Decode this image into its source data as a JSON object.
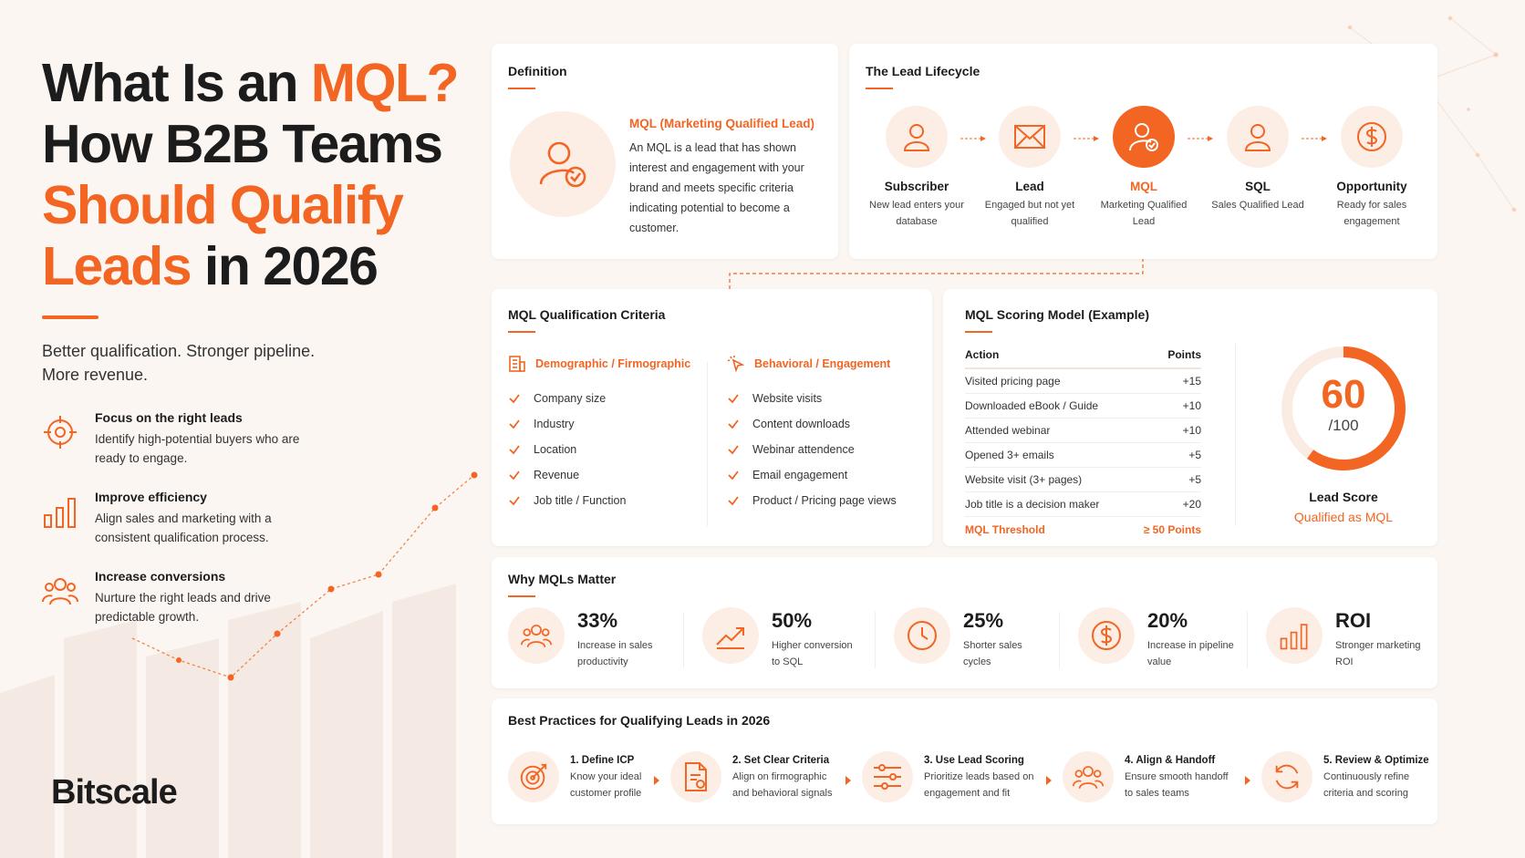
{
  "hero": {
    "title_part1": "What Is an ",
    "title_accent1": "MQL?",
    "title_part2": "How B2B Teams",
    "title_accent2": "Should Qualify",
    "title_accent3": "Leads",
    "title_part3": " in 2026",
    "subtitle_line1": "Better qualification. Stronger pipeline.",
    "subtitle_line2": "More revenue."
  },
  "benefits": [
    {
      "icon": "target-icon",
      "title": "Focus on the right leads",
      "text": "Identify high-potential buyers who are ready to engage."
    },
    {
      "icon": "bar-chart-icon",
      "title": "Improve efficiency",
      "text": "Align sales and marketing with a consistent qualification process."
    },
    {
      "icon": "users-icon",
      "title": "Increase conversions",
      "text": "Nurture the right leads and drive predictable growth."
    }
  ],
  "brand": {
    "logo": "Bitscale"
  },
  "definition": {
    "heading": "Definition",
    "term": "MQL (Marketing Qualified Lead)",
    "text": "An MQL is a lead that has shown interest and engagement with your brand and meets specific criteria indicating potential to become a customer."
  },
  "lifecycle": {
    "heading": "The Lead Lifecycle",
    "stages": [
      {
        "icon": "person-icon",
        "name": "Subscriber",
        "desc": "New lead enters your database"
      },
      {
        "icon": "envelope-icon",
        "name": "Lead",
        "desc": "Engaged but not yet qualified"
      },
      {
        "icon": "person-check-icon",
        "name": "MQL",
        "desc": "Marketing Qualified Lead"
      },
      {
        "icon": "person-icon",
        "name": "SQL",
        "desc": "Sales Qualified Lead"
      },
      {
        "icon": "dollar-icon",
        "name": "Opportunity",
        "desc": "Ready for sales engagement"
      }
    ]
  },
  "criteria": {
    "heading": "MQL Qualification Criteria",
    "demographic": {
      "title": "Demographic / Firmographic",
      "items": [
        "Company size",
        "Industry",
        "Location",
        "Revenue",
        "Job title / Function"
      ]
    },
    "behavioral": {
      "title": "Behavioral / Engagement",
      "items": [
        "Website visits",
        "Content downloads",
        "Webinar attendence",
        "Email engagement",
        "Product / Pricing page views"
      ]
    }
  },
  "scoring": {
    "heading": "MQL Scoring Model (Example)",
    "col_action": "Action",
    "col_points": "Points",
    "rows": [
      {
        "action": "Visited pricing page",
        "points": "+15"
      },
      {
        "action": "Downloaded eBook / Guide",
        "points": "+10"
      },
      {
        "action": "Attended webinar",
        "points": "+10"
      },
      {
        "action": "Opened 3+ emails",
        "points": "+5"
      },
      {
        "action": "Website visit (3+ pages)",
        "points": "+5"
      },
      {
        "action": "Job title is a decision maker",
        "points": "+20"
      }
    ],
    "threshold_label": "MQL Threshold",
    "threshold_value": "≥ 50 Points",
    "score": "60",
    "score_max": "/100",
    "score_fraction": 0.6,
    "score_label": "Lead Score",
    "score_status": "Qualified as MQL"
  },
  "why": {
    "heading": "Why MQLs Matter",
    "stats": [
      {
        "icon": "users-icon",
        "value": "33%",
        "label": "Increase in sales productivity"
      },
      {
        "icon": "trend-up-icon",
        "value": "50%",
        "label": "Higher conversion to SQL"
      },
      {
        "icon": "clock-icon",
        "value": "25%",
        "label": "Shorter sales cycles"
      },
      {
        "icon": "dollar-icon",
        "value": "20%",
        "label": "Increase in pipeline value"
      },
      {
        "icon": "bar-chart-icon",
        "value": "ROI",
        "label": "Stronger marketing ROI"
      }
    ]
  },
  "best": {
    "heading": "Best Practices for Qualifying Leads in 2026",
    "steps": [
      {
        "icon": "target-icon",
        "title": "1. Define ICP",
        "text": "Know your ideal customer profile"
      },
      {
        "icon": "document-icon",
        "title": "2. Set Clear Criteria",
        "text": "Align on firmographic and behavioral signals"
      },
      {
        "icon": "sliders-icon",
        "title": "3. Use Lead Scoring",
        "text": "Prioritize leads based on engagement and fit"
      },
      {
        "icon": "users-icon",
        "title": "4. Align & Handoff",
        "text": "Ensure smooth handoff to sales teams"
      },
      {
        "icon": "refresh-icon",
        "title": "5. Review & Optimize",
        "text": "Continuously refine criteria and scoring"
      }
    ]
  },
  "colors": {
    "accent": "#f26522",
    "accent_light": "#fdeee5",
    "text": "#1c1c1c"
  }
}
